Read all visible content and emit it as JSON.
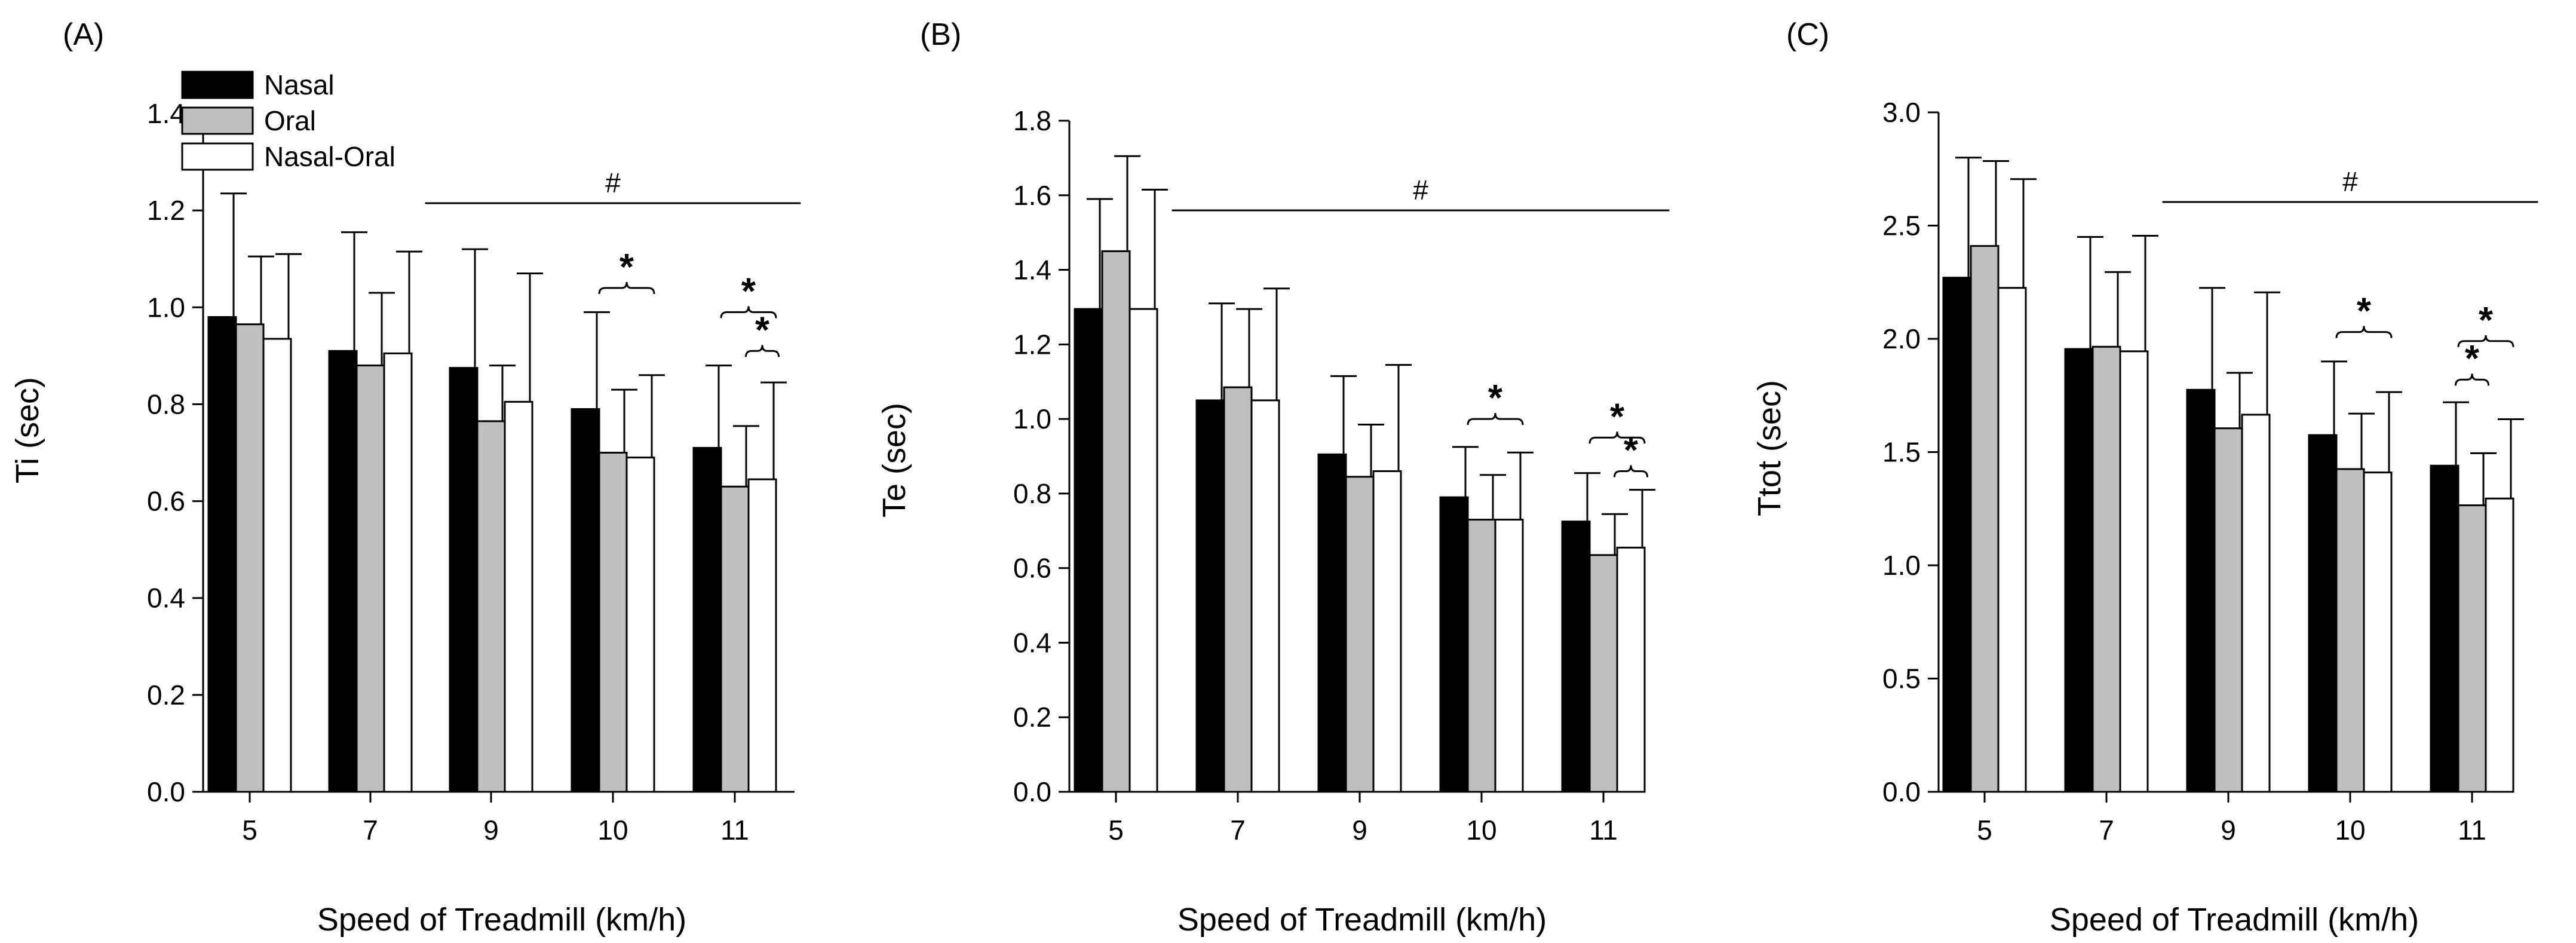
{
  "colors": {
    "nasal": "#000000",
    "oral": "#bfbfbf",
    "nasal_oral": "#ffffff",
    "stroke": "#000000"
  },
  "legend": [
    {
      "name": "Nasal",
      "color": "#000000"
    },
    {
      "name": "Oral",
      "color": "#bfbfbf"
    },
    {
      "name": "Nasal-Oral",
      "color": "#ffffff"
    }
  ],
  "chart_data": [
    {
      "type": "bar",
      "panel": "(A)",
      "xlabel": "Speed of Treadmill (km/h)",
      "ylabel": "Ti (sec)",
      "ylim": [
        0,
        1.4
      ],
      "yticks": [
        "0.0",
        "0.2",
        "0.4",
        "0.6",
        "0.8",
        "1.0",
        "1.2",
        "1.4"
      ],
      "categories": [
        "5",
        "7",
        "9",
        "10",
        "11"
      ],
      "series": [
        {
          "name": "Nasal",
          "values": [
            0.98,
            0.91,
            0.875,
            0.79,
            0.71
          ],
          "errors": [
            0.255,
            0.245,
            0.245,
            0.2,
            0.17
          ]
        },
        {
          "name": "Oral",
          "values": [
            0.965,
            0.88,
            0.765,
            0.7,
            0.63
          ],
          "errors": [
            0.14,
            0.15,
            0.115,
            0.13,
            0.125
          ]
        },
        {
          "name": "Nasal-Oral",
          "values": [
            0.935,
            0.905,
            0.805,
            0.69,
            0.645
          ],
          "errors": [
            0.175,
            0.21,
            0.265,
            0.17,
            0.2
          ]
        }
      ],
      "hash": {
        "label": "#",
        "from": "9",
        "to": "11"
      },
      "significance": [
        {
          "category": "10",
          "pair": [
            "Oral",
            "Nasal-Oral"
          ],
          "label": "*",
          "level": 1.04
        },
        {
          "category": "11",
          "pair": [
            "Oral",
            "Nasal-Oral"
          ],
          "label": "*",
          "level": 0.99
        },
        {
          "category": "11",
          "pair": [
            "Nasal-Oral",
            "Nasal-Oral"
          ],
          "label": "*",
          "level": 0.91
        }
      ]
    },
    {
      "type": "bar",
      "panel": "(B)",
      "xlabel": "Speed of Treadmill (km/h)",
      "ylabel": "Te (sec)",
      "ylim": [
        0,
        1.8
      ],
      "yticks": [
        "0.0",
        "0.2",
        "0.4",
        "0.6",
        "0.8",
        "1.0",
        "1.2",
        "1.4",
        "1.6",
        "1.8"
      ],
      "categories": [
        "5",
        "7",
        "9",
        "10",
        "11"
      ],
      "series": [
        {
          "name": "Nasal",
          "values": [
            1.295,
            1.05,
            0.905,
            0.79,
            0.725
          ],
          "errors": [
            0.295,
            0.26,
            0.21,
            0.135,
            0.13
          ]
        },
        {
          "name": "Oral",
          "values": [
            1.45,
            1.085,
            0.845,
            0.73,
            0.635
          ],
          "errors": [
            0.255,
            0.21,
            0.14,
            0.12,
            0.11
          ]
        },
        {
          "name": "Nasal-Oral",
          "values": [
            1.295,
            1.05,
            0.86,
            0.73,
            0.655
          ],
          "errors": [
            0.32,
            0.3,
            0.285,
            0.18,
            0.155
          ]
        }
      ],
      "hash": {
        "label": "#",
        "from": "7",
        "to": "11"
      },
      "significance": [
        {
          "category": "10",
          "pair": [
            "Oral",
            "Nasal-Oral"
          ],
          "label": "*",
          "level": 1.0
        },
        {
          "category": "11",
          "pair": [
            "Oral",
            "Nasal-Oral"
          ],
          "label": "*",
          "level": 0.95
        },
        {
          "category": "11",
          "pair": [
            "Nasal-Oral",
            "Nasal-Oral"
          ],
          "label": "*",
          "level": 0.86
        }
      ]
    },
    {
      "type": "bar",
      "panel": "(C)",
      "xlabel": "Speed of Treadmill (km/h)",
      "ylabel": "Ttot (sec)",
      "ylim": [
        0,
        3.0
      ],
      "yticks": [
        "0.0",
        "0.5",
        "1.0",
        "1.5",
        "2.0",
        "2.5",
        "3.0"
      ],
      "categories": [
        "5",
        "7",
        "9",
        "10",
        "11"
      ],
      "series": [
        {
          "name": "Nasal",
          "values": [
            2.27,
            1.955,
            1.775,
            1.575,
            1.44
          ],
          "errors": [
            0.53,
            0.495,
            0.45,
            0.325,
            0.28
          ]
        },
        {
          "name": "Oral",
          "values": [
            2.41,
            1.965,
            1.605,
            1.425,
            1.265
          ],
          "errors": [
            0.375,
            0.33,
            0.245,
            0.245,
            0.23
          ]
        },
        {
          "name": "Nasal-Oral",
          "values": [
            2.225,
            1.945,
            1.665,
            1.41,
            1.295
          ],
          "errors": [
            0.48,
            0.51,
            0.54,
            0.355,
            0.35
          ]
        }
      ],
      "hash": {
        "label": "#",
        "from": "9",
        "to": "11"
      },
      "significance": [
        {
          "category": "10",
          "pair": [
            "Oral",
            "Nasal-Oral"
          ],
          "label": "*",
          "level": 2.03
        },
        {
          "category": "11",
          "pair": [
            "Oral",
            "Nasal-Oral"
          ],
          "label": "*",
          "level": 1.99
        },
        {
          "category": "11",
          "pair": [
            "Oral",
            "Oral"
          ],
          "label": "*",
          "level": 1.82
        }
      ]
    }
  ]
}
